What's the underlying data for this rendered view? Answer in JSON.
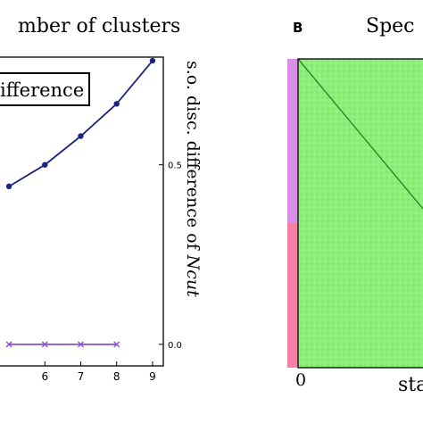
{
  "panel_a": {
    "title_fragment": "mber of clusters",
    "legend_fragment": "ifference",
    "right_axis_label_main": "s.o. disc. difference of ",
    "right_axis_label_sub": "Ncut"
  },
  "panel_b": {
    "letter": "B",
    "title_fragment": "Spec",
    "x_tick_0": "0",
    "x_label_fragment": "sta",
    "colors": {
      "matrix": "#8ef07a",
      "matrix_grid": "#7ad866",
      "diagonal": "#2a8a2a",
      "bar_top": "#d98ee8",
      "bar_bottom": "#f57fa6"
    }
  },
  "chart_data": [
    {
      "type": "line",
      "title": "",
      "xlabel": "",
      "ylabel": "s.o. disc. difference of Ncut",
      "x_ticks": [
        "6",
        "7",
        "8",
        "9"
      ],
      "y_ticks": [
        "0.0",
        "0.5"
      ],
      "xlim": [
        4.7,
        9.3
      ],
      "ylim": [
        -0.06,
        0.8
      ],
      "grid": false,
      "series": [
        {
          "color": "#1a237e",
          "marker": "circle",
          "x": [
            5,
            6,
            7,
            8,
            9
          ],
          "values": [
            0.44,
            0.5,
            0.58,
            0.67,
            0.79
          ]
        },
        {
          "color": "#8a4fd8",
          "marker": "x",
          "x": [
            5,
            6,
            7,
            8
          ],
          "values": [
            0.0,
            0.0,
            0.0,
            0.0
          ]
        }
      ]
    },
    {
      "type": "heatmap",
      "title": "",
      "x_ticks": [
        "0"
      ],
      "description_colors": "green similarity matrix with darker diagonal; side bar split pink-violet (top) and pink (bottom)",
      "cluster_bar": [
        {
          "color": "#d98ee8",
          "fraction": 0.52
        },
        {
          "color": "#f57fa6",
          "fraction": 0.48
        }
      ]
    }
  ]
}
